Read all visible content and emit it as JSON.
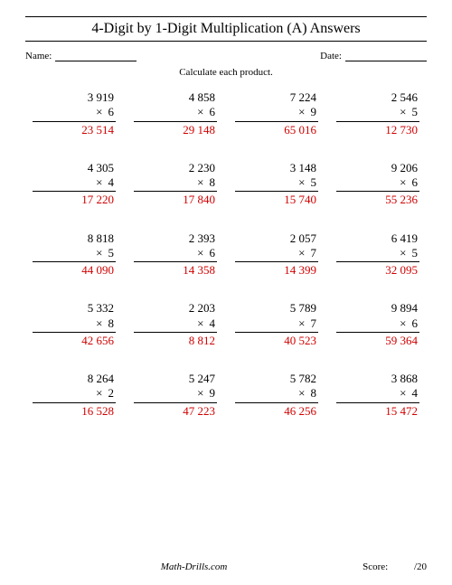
{
  "title": "4-Digit by 1-Digit Multiplication (A) Answers",
  "name_label": "Name:",
  "date_label": "Date:",
  "instruction": "Calculate each product.",
  "score_label": "Score:",
  "score_suffix": "/20",
  "site": "Math-Drills.com",
  "times_symbol": "×",
  "answer_color": "#d00000",
  "problem_fontsize": 13,
  "columns": 4,
  "rows": 5,
  "problems": [
    {
      "a": "3 919",
      "b": "6",
      "ans": "23 514"
    },
    {
      "a": "4 858",
      "b": "6",
      "ans": "29 148"
    },
    {
      "a": "7 224",
      "b": "9",
      "ans": "65 016"
    },
    {
      "a": "2 546",
      "b": "5",
      "ans": "12 730"
    },
    {
      "a": "4 305",
      "b": "4",
      "ans": "17 220"
    },
    {
      "a": "2 230",
      "b": "8",
      "ans": "17 840"
    },
    {
      "a": "3 148",
      "b": "5",
      "ans": "15 740"
    },
    {
      "a": "9 206",
      "b": "6",
      "ans": "55 236"
    },
    {
      "a": "8 818",
      "b": "5",
      "ans": "44 090"
    },
    {
      "a": "2 393",
      "b": "6",
      "ans": "14 358"
    },
    {
      "a": "2 057",
      "b": "7",
      "ans": "14 399"
    },
    {
      "a": "6 419",
      "b": "5",
      "ans": "32 095"
    },
    {
      "a": "5 332",
      "b": "8",
      "ans": "42 656"
    },
    {
      "a": "2 203",
      "b": "4",
      "ans": "8 812"
    },
    {
      "a": "5 789",
      "b": "7",
      "ans": "40 523"
    },
    {
      "a": "9 894",
      "b": "6",
      "ans": "59 364"
    },
    {
      "a": "8 264",
      "b": "2",
      "ans": "16 528"
    },
    {
      "a": "5 247",
      "b": "9",
      "ans": "47 223"
    },
    {
      "a": "5 782",
      "b": "8",
      "ans": "46 256"
    },
    {
      "a": "3 868",
      "b": "4",
      "ans": "15 472"
    }
  ]
}
